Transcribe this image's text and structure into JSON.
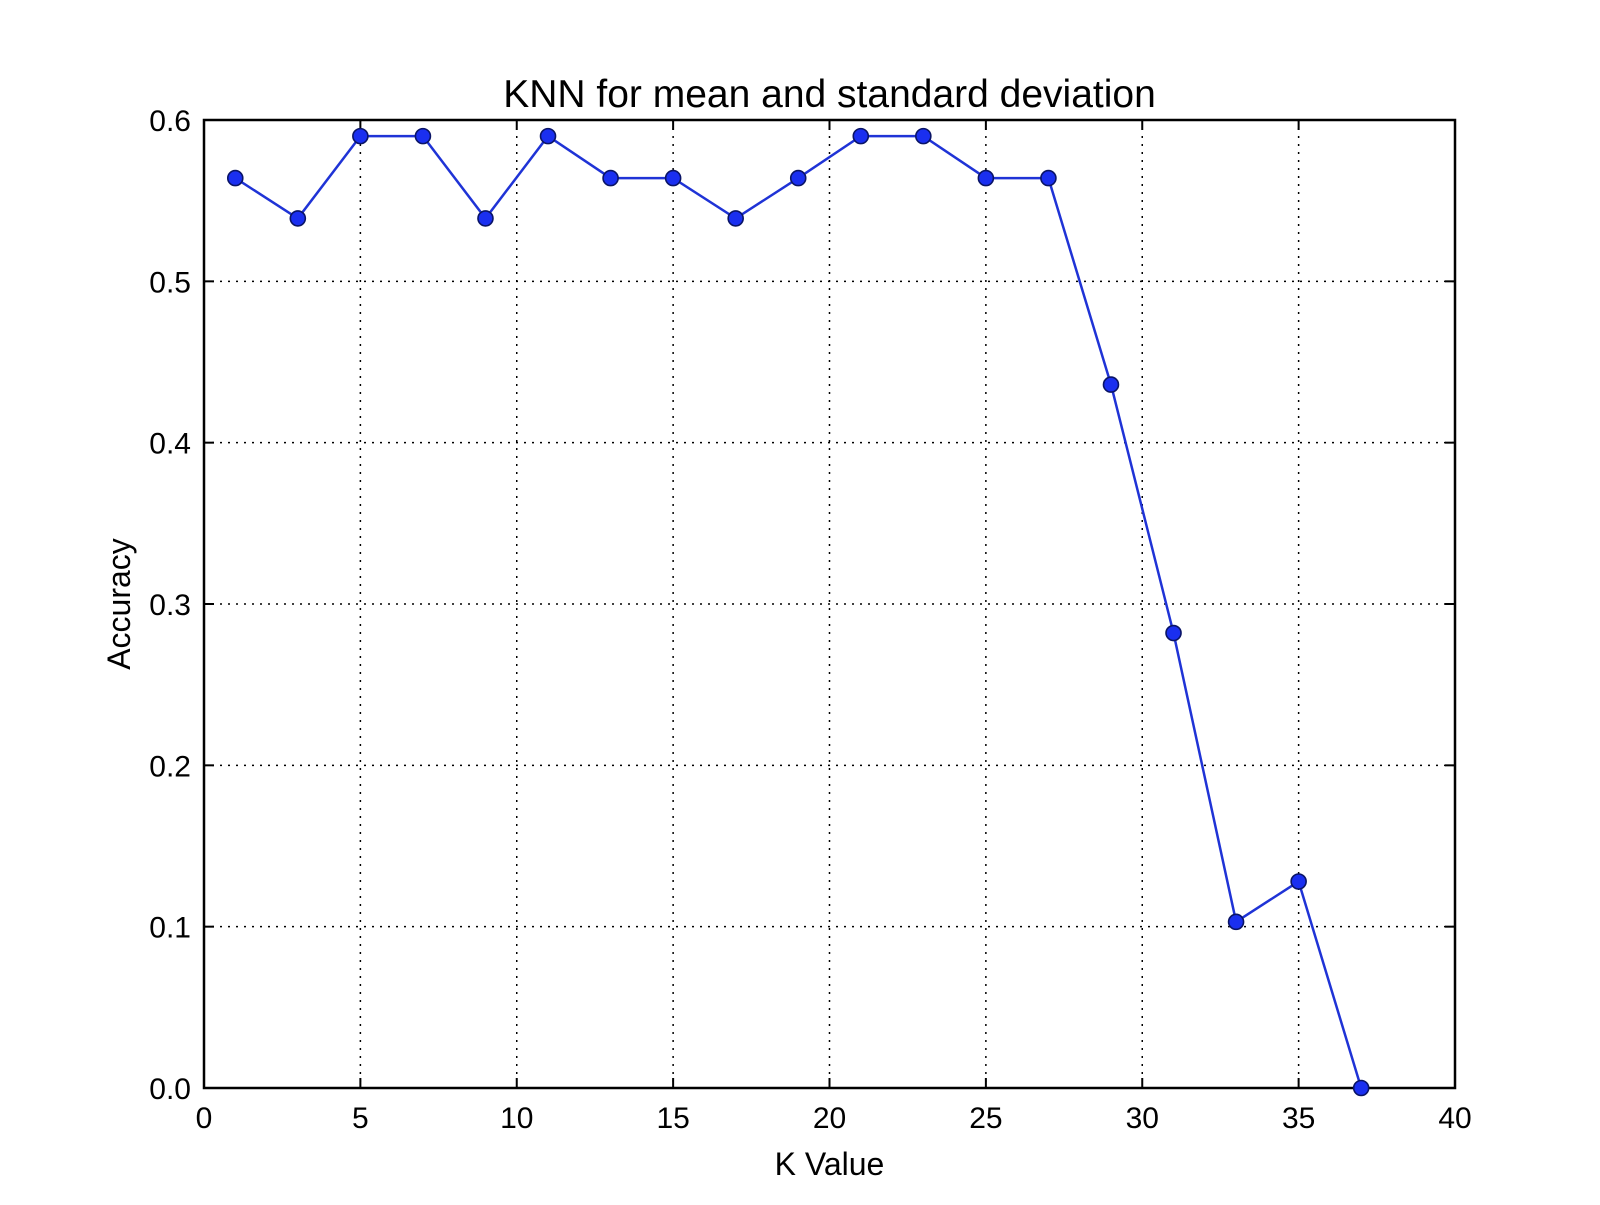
{
  "chart_data": {
    "type": "line",
    "title": "KNN for mean and standard deviation",
    "xlabel": "K Value",
    "ylabel": "Accuracy",
    "xlim": [
      0,
      40
    ],
    "ylim": [
      0,
      0.6
    ],
    "x_ticks": [
      0,
      5,
      10,
      15,
      20,
      25,
      30,
      35,
      40
    ],
    "x_tick_labels": [
      "0",
      "5",
      "10",
      "15",
      "20",
      "25",
      "30",
      "35",
      "40"
    ],
    "y_ticks": [
      0,
      0.1,
      0.2,
      0.3,
      0.4,
      0.5,
      0.6
    ],
    "y_tick_labels": [
      "0.0",
      "0.1",
      "0.2",
      "0.3",
      "0.4",
      "0.5",
      "0.6"
    ],
    "grid": true,
    "grid_style": "dotted",
    "colors": {
      "line": "#1f33d6",
      "marker_fill": "#1a2ff0",
      "marker_edge": "#0a1466",
      "axis": "#000000",
      "grid": "#000000",
      "background": "#ffffff"
    },
    "series": [
      {
        "x": [
          1,
          3,
          5,
          7,
          9,
          11,
          13,
          15,
          17,
          19,
          21,
          23,
          25,
          27,
          29,
          31,
          33,
          35,
          37
        ],
        "y": [
          0.564,
          0.539,
          0.59,
          0.59,
          0.539,
          0.59,
          0.564,
          0.564,
          0.539,
          0.564,
          0.59,
          0.59,
          0.564,
          0.564,
          0.436,
          0.282,
          0.103,
          0.128,
          0.0
        ],
        "marker": "circle"
      }
    ]
  }
}
